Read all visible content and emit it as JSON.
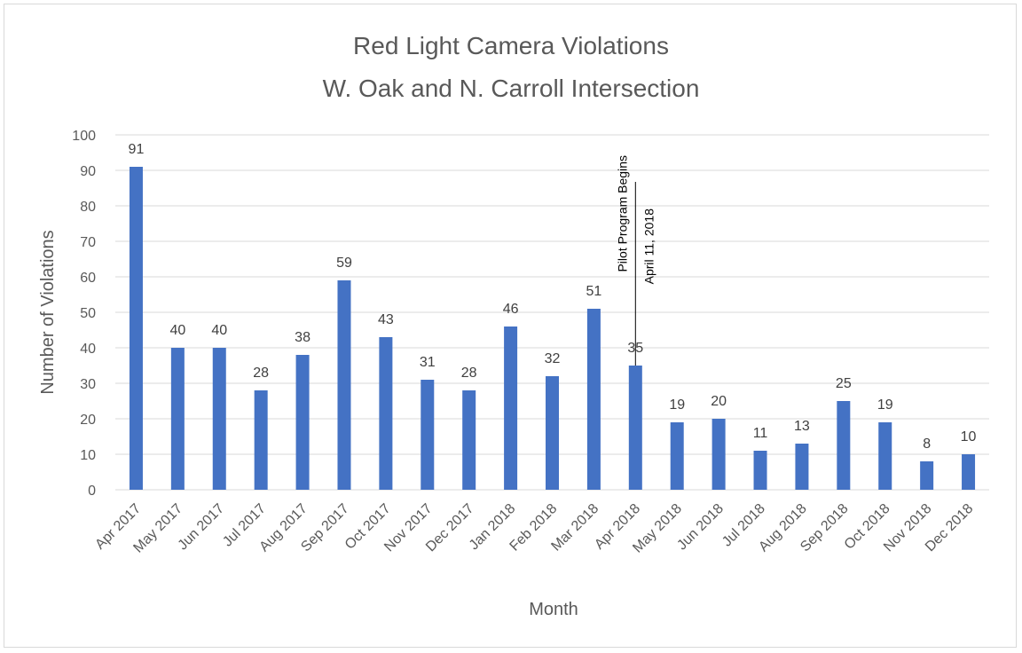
{
  "chart_data": {
    "type": "bar",
    "title_lines": [
      "Red Light Camera Violations",
      "W. Oak and N. Carroll Intersection"
    ],
    "xlabel": "Month",
    "ylabel": "Number of Violations",
    "ylim": [
      0,
      100
    ],
    "yticks": [
      0,
      10,
      20,
      30,
      40,
      50,
      60,
      70,
      80,
      90,
      100
    ],
    "grid": true,
    "legend": "none",
    "bar_color": "#4472c4",
    "categories": [
      "Apr 2017",
      "May 2017",
      "Jun 2017",
      "Jul 2017",
      "Aug 2017",
      "Sep 2017",
      "Oct 2017",
      "Nov 2017",
      "Dec 2017",
      "Jan 2018",
      "Feb 2018",
      "Mar 2018",
      "Apr 2018",
      "May 2018",
      "Jun 2018",
      "Jul 2018",
      "Aug 2018",
      "Sep 2018",
      "Oct 2018",
      "Nov 2018",
      "Dec 2018"
    ],
    "values": [
      91,
      40,
      40,
      28,
      38,
      59,
      43,
      31,
      28,
      46,
      32,
      51,
      35,
      19,
      20,
      11,
      13,
      25,
      19,
      8,
      10
    ],
    "annotation": {
      "category": "Apr 2018",
      "lines": [
        "Pilot Program Begins",
        "April 11, 2018"
      ]
    }
  }
}
